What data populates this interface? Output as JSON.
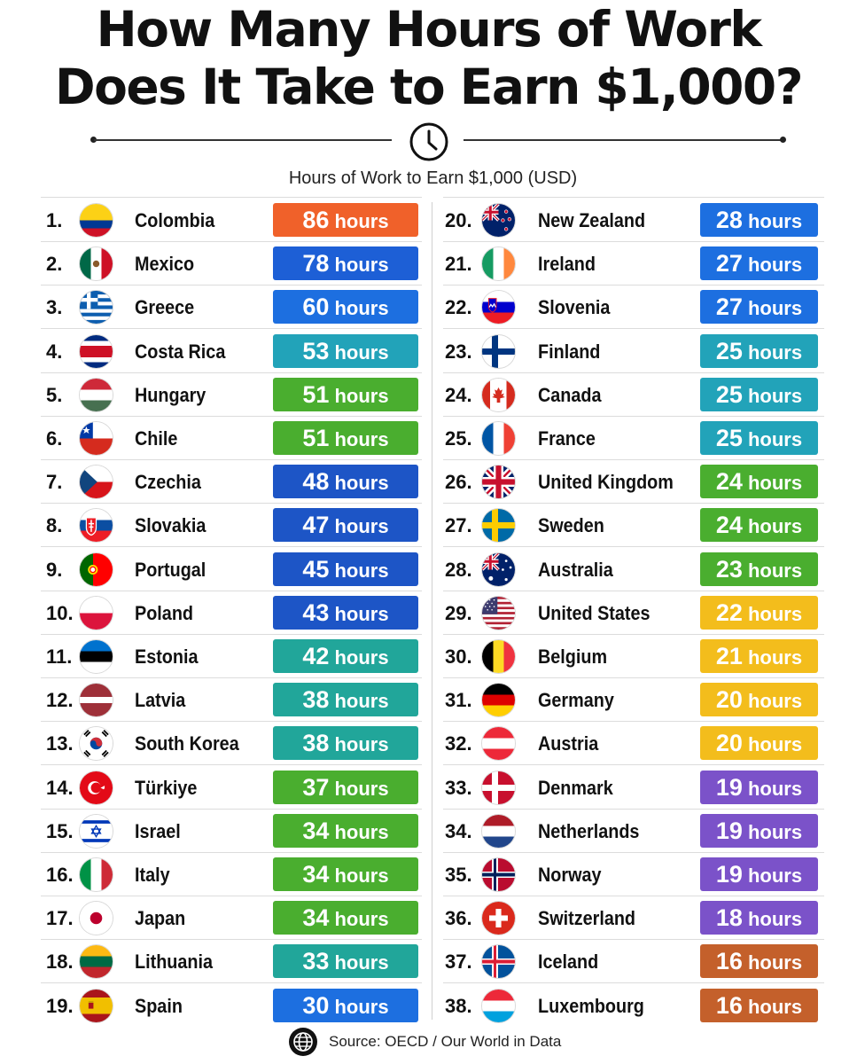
{
  "header": {
    "title_line1": "How Many Hours of Work",
    "title_line2": "Does It Take to Earn $1,000?",
    "subtitle": "Hours of Work to Earn $1,000 (USD)"
  },
  "footer": {
    "source": "Source: OECD / Our World in Data"
  },
  "unit_label": "hours",
  "chart_data": {
    "type": "table",
    "title": "How Many Hours of Work Does It Take to Earn $1,000?",
    "subtitle": "Hours of Work to Earn $1,000 (USD)",
    "columns": [
      "Rank",
      "Country",
      "Hours"
    ],
    "rows": [
      {
        "rank": "1.",
        "country": "Colombia",
        "hours": 86,
        "color": "#f0612a",
        "flag": "colombia"
      },
      {
        "rank": "2.",
        "country": "Mexico",
        "hours": 78,
        "color": "#1d5fd6",
        "flag": "mexico"
      },
      {
        "rank": "3.",
        "country": "Greece",
        "hours": 60,
        "color": "#1d6fe0",
        "flag": "greece"
      },
      {
        "rank": "4.",
        "country": "Costa Rica",
        "hours": 53,
        "color": "#22a3b9",
        "flag": "costa-rica"
      },
      {
        "rank": "5.",
        "country": "Hungary",
        "hours": 51,
        "color": "#4aae2f",
        "flag": "hungary"
      },
      {
        "rank": "6.",
        "country": "Chile",
        "hours": 51,
        "color": "#4aae2f",
        "flag": "chile"
      },
      {
        "rank": "7.",
        "country": "Czechia",
        "hours": 48,
        "color": "#1d55c6",
        "flag": "czechia"
      },
      {
        "rank": "8.",
        "country": "Slovakia",
        "hours": 47,
        "color": "#1d55c6",
        "flag": "slovakia"
      },
      {
        "rank": "9.",
        "country": "Portugal",
        "hours": 45,
        "color": "#1d55c6",
        "flag": "portugal"
      },
      {
        "rank": "10.",
        "country": "Poland",
        "hours": 43,
        "color": "#1d55c6",
        "flag": "poland"
      },
      {
        "rank": "11.",
        "country": "Estonia",
        "hours": 42,
        "color": "#21a69a",
        "flag": "estonia"
      },
      {
        "rank": "12.",
        "country": "Latvia",
        "hours": 38,
        "color": "#21a69a",
        "flag": "latvia"
      },
      {
        "rank": "13.",
        "country": "South Korea",
        "hours": 38,
        "color": "#21a69a",
        "flag": "south-korea"
      },
      {
        "rank": "14.",
        "country": "Türkiye",
        "hours": 37,
        "color": "#4aae2f",
        "flag": "turkiye"
      },
      {
        "rank": "15.",
        "country": "Israel",
        "hours": 34,
        "color": "#4aae2f",
        "flag": "israel"
      },
      {
        "rank": "16.",
        "country": "Italy",
        "hours": 34,
        "color": "#4aae2f",
        "flag": "italy"
      },
      {
        "rank": "17.",
        "country": "Japan",
        "hours": 34,
        "color": "#4aae2f",
        "flag": "japan"
      },
      {
        "rank": "18.",
        "country": "Lithuania",
        "hours": 33,
        "color": "#21a69a",
        "flag": "lithuania"
      },
      {
        "rank": "19.",
        "country": "Spain",
        "hours": 30,
        "color": "#1d6fe0",
        "flag": "spain"
      },
      {
        "rank": "20.",
        "country": "New Zealand",
        "hours": 28,
        "color": "#1d6fe0",
        "flag": "new-zealand"
      },
      {
        "rank": "21.",
        "country": "Ireland",
        "hours": 27,
        "color": "#1d6fe0",
        "flag": "ireland"
      },
      {
        "rank": "22.",
        "country": "Slovenia",
        "hours": 27,
        "color": "#1d6fe0",
        "flag": "slovenia"
      },
      {
        "rank": "23.",
        "country": "Finland",
        "hours": 25,
        "color": "#22a3b9",
        "flag": "finland"
      },
      {
        "rank": "24.",
        "country": "Canada",
        "hours": 25,
        "color": "#22a3b9",
        "flag": "canada"
      },
      {
        "rank": "25.",
        "country": "France",
        "hours": 25,
        "color": "#22a3b9",
        "flag": "france"
      },
      {
        "rank": "26.",
        "country": "United Kingdom",
        "hours": 24,
        "color": "#4aae2f",
        "flag": "united-kingdom"
      },
      {
        "rank": "27.",
        "country": "Sweden",
        "hours": 24,
        "color": "#4aae2f",
        "flag": "sweden"
      },
      {
        "rank": "28.",
        "country": "Australia",
        "hours": 23,
        "color": "#4aae2f",
        "flag": "australia"
      },
      {
        "rank": "29.",
        "country": "United States",
        "hours": 22,
        "color": "#f3bd1c",
        "flag": "united-states"
      },
      {
        "rank": "30.",
        "country": "Belgium",
        "hours": 21,
        "color": "#f3bd1c",
        "flag": "belgium"
      },
      {
        "rank": "31.",
        "country": "Germany",
        "hours": 20,
        "color": "#f3bd1c",
        "flag": "germany"
      },
      {
        "rank": "32.",
        "country": "Austria",
        "hours": 20,
        "color": "#f3bd1c",
        "flag": "austria"
      },
      {
        "rank": "33.",
        "country": "Denmark",
        "hours": 19,
        "color": "#7b52c9",
        "flag": "denmark"
      },
      {
        "rank": "34.",
        "country": "Netherlands",
        "hours": 19,
        "color": "#7b52c9",
        "flag": "netherlands"
      },
      {
        "rank": "35.",
        "country": "Norway",
        "hours": 19,
        "color": "#7b52c9",
        "flag": "norway"
      },
      {
        "rank": "36.",
        "country": "Switzerland",
        "hours": 18,
        "color": "#7b52c9",
        "flag": "switzerland"
      },
      {
        "rank": "37.",
        "country": "Iceland",
        "hours": 16,
        "color": "#c4602b",
        "flag": "iceland"
      },
      {
        "rank": "38.",
        "country": "Luxembourg",
        "hours": 16,
        "color": "#c4602b",
        "flag": "luxembourg"
      }
    ]
  }
}
